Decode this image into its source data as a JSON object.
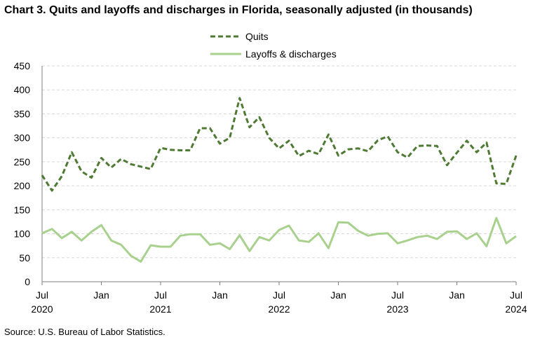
{
  "title": "Chart 3. Quits and layoffs and discharges in Florida, seasonally adjusted (in thousands)",
  "source": "Source: U.S. Bureau of Labor Statistics.",
  "colors": {
    "quits": "#4e7a33",
    "layoffs": "#a9d18e",
    "grid": "#d9d9d9",
    "axis": "#7f7f7f"
  },
  "chart_data": {
    "type": "line",
    "title": "Chart 3. Quits and layoffs and discharges in Florida, seasonally adjusted (in thousands)",
    "xlabel": "",
    "ylabel": "",
    "ylim": [
      0,
      450
    ],
    "yticks": [
      0,
      50,
      100,
      150,
      200,
      250,
      300,
      350,
      400,
      450
    ],
    "grid": true,
    "legend_position": "top-center",
    "x": [
      "2020-07",
      "2020-08",
      "2020-09",
      "2020-10",
      "2020-11",
      "2020-12",
      "2021-01",
      "2021-02",
      "2021-03",
      "2021-04",
      "2021-05",
      "2021-06",
      "2021-07",
      "2021-08",
      "2021-09",
      "2021-10",
      "2021-11",
      "2021-12",
      "2022-01",
      "2022-02",
      "2022-03",
      "2022-04",
      "2022-05",
      "2022-06",
      "2022-07",
      "2022-08",
      "2022-09",
      "2022-10",
      "2022-11",
      "2022-12",
      "2023-01",
      "2023-02",
      "2023-03",
      "2023-04",
      "2023-05",
      "2023-06",
      "2023-07",
      "2023-08",
      "2023-09",
      "2023-10",
      "2023-11",
      "2023-12",
      "2024-01",
      "2024-02",
      "2024-03",
      "2024-04",
      "2024-05",
      "2024-06",
      "2024-07"
    ],
    "xtick_labels": [
      {
        "month": "Jul",
        "year": "2020",
        "index": 0
      },
      {
        "month": "Jan",
        "year": "",
        "index": 6
      },
      {
        "month": "Jul",
        "year": "2021",
        "index": 12
      },
      {
        "month": "Jan",
        "year": "",
        "index": 18
      },
      {
        "month": "Jul",
        "year": "2022",
        "index": 24
      },
      {
        "month": "Jan",
        "year": "",
        "index": 30
      },
      {
        "month": "Jul",
        "year": "2023",
        "index": 36
      },
      {
        "month": "Jan",
        "year": "",
        "index": 42
      },
      {
        "month": "Jul",
        "year": "2024",
        "index": 48
      }
    ],
    "series": [
      {
        "name": "Quits",
        "style": "dashed",
        "values": [
          222,
          190,
          220,
          270,
          230,
          217,
          258,
          238,
          256,
          245,
          240,
          235,
          279,
          275,
          274,
          274,
          320,
          320,
          288,
          300,
          383,
          322,
          343,
          300,
          278,
          294,
          262,
          273,
          266,
          307,
          263,
          276,
          278,
          272,
          295,
          303,
          270,
          259,
          283,
          284,
          283,
          243,
          269,
          294,
          270,
          290,
          205,
          204,
          263
        ]
      },
      {
        "name": "Layoffs & discharges",
        "style": "solid",
        "values": [
          101,
          110,
          91,
          104,
          86,
          104,
          118,
          86,
          77,
          54,
          42,
          76,
          73,
          73,
          96,
          99,
          99,
          77,
          80,
          68,
          97,
          64,
          93,
          86,
          108,
          117,
          86,
          83,
          101,
          70,
          124,
          123,
          106,
          96,
          100,
          101,
          80,
          86,
          93,
          96,
          89,
          104,
          105,
          89,
          101,
          74,
          133,
          80,
          95
        ]
      }
    ]
  }
}
